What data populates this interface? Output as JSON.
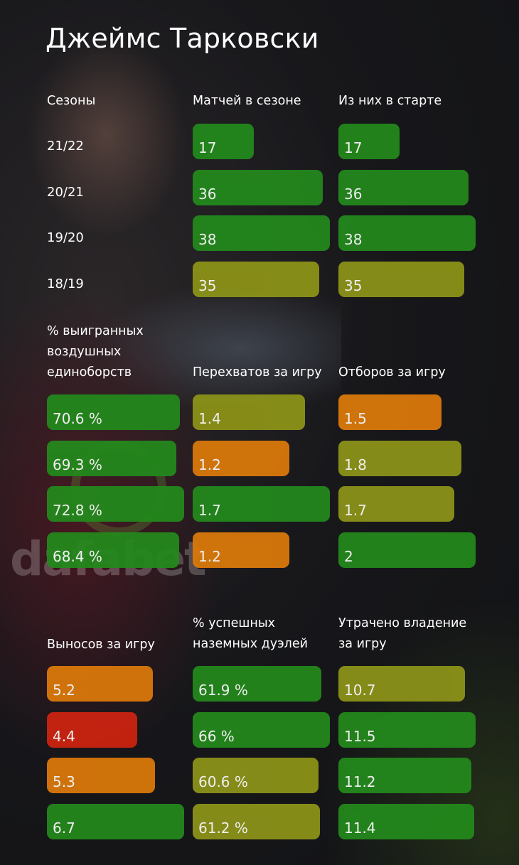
{
  "title": "Джеймс Тарковски",
  "watermark": "dafabet",
  "colors": {
    "green": "#238a1c",
    "yellow_green": "#8e9418",
    "orange": "#dd7a0a",
    "red": "#cf2310"
  },
  "chart_data": {
    "type": "table",
    "rows": [
      "21/22",
      "20/21",
      "19/20",
      "18/19"
    ],
    "row_header": "Сезоны",
    "panels": [
      {
        "label": "Матчей в сезоне",
        "values": [
          "17",
          "36",
          "38",
          "35"
        ],
        "numbers": [
          17,
          36,
          38,
          35
        ],
        "scale": [
          0,
          38
        ],
        "colors": [
          "green",
          "green",
          "green",
          "yellow_green"
        ]
      },
      {
        "label": "Из них в старте",
        "values": [
          "17",
          "36",
          "38",
          "35"
        ],
        "numbers": [
          17,
          36,
          38,
          35
        ],
        "scale": [
          0,
          38
        ],
        "colors": [
          "green",
          "green",
          "green",
          "yellow_green"
        ]
      },
      {
        "label": "% выигранных воздушных единоборств",
        "values": [
          "70.6 %",
          "69.3 %",
          "72.8 %",
          "68.4 %"
        ],
        "numbers": [
          70.6,
          69.3,
          72.8,
          68.4
        ],
        "scale": [
          0,
          72.8
        ],
        "colors": [
          "green",
          "green",
          "green",
          "green"
        ]
      },
      {
        "label": "Перехватов за игру",
        "values": [
          "1.4",
          "1.2",
          "1.7",
          "1.2"
        ],
        "numbers": [
          1.4,
          1.2,
          1.7,
          1.2
        ],
        "scale": [
          0,
          1.7
        ],
        "colors": [
          "yellow_green",
          "orange",
          "green",
          "orange"
        ]
      },
      {
        "label": "Отборов за игру",
        "values": [
          "1.5",
          "1.8",
          "1.7",
          "2"
        ],
        "numbers": [
          1.5,
          1.8,
          1.7,
          2
        ],
        "scale": [
          0,
          2.0
        ],
        "colors": [
          "orange",
          "yellow_green",
          "yellow_green",
          "green"
        ]
      },
      {
        "label": "Выносов за игру",
        "values": [
          "5.2",
          "4.4",
          "5.3",
          "6.7"
        ],
        "numbers": [
          5.2,
          4.4,
          5.3,
          6.7
        ],
        "scale": [
          0,
          6.7
        ],
        "colors": [
          "orange",
          "red",
          "orange",
          "green"
        ]
      },
      {
        "label": "% успешных наземных дуэлей",
        "values": [
          "61.9 %",
          "66 %",
          "60.6 %",
          "61.2 %"
        ],
        "numbers": [
          61.9,
          66,
          60.6,
          61.2
        ],
        "scale": [
          0,
          66
        ],
        "colors": [
          "green",
          "green",
          "yellow_green",
          "yellow_green"
        ]
      },
      {
        "label": "Утрачено владение за игру",
        "values": [
          "10.7",
          "11.5",
          "11.2",
          "11.4"
        ],
        "numbers": [
          10.7,
          11.5,
          11.2,
          11.4
        ],
        "scale": [
          0,
          11.5
        ],
        "colors": [
          "yellow_green",
          "green",
          "green",
          "green"
        ]
      }
    ]
  }
}
